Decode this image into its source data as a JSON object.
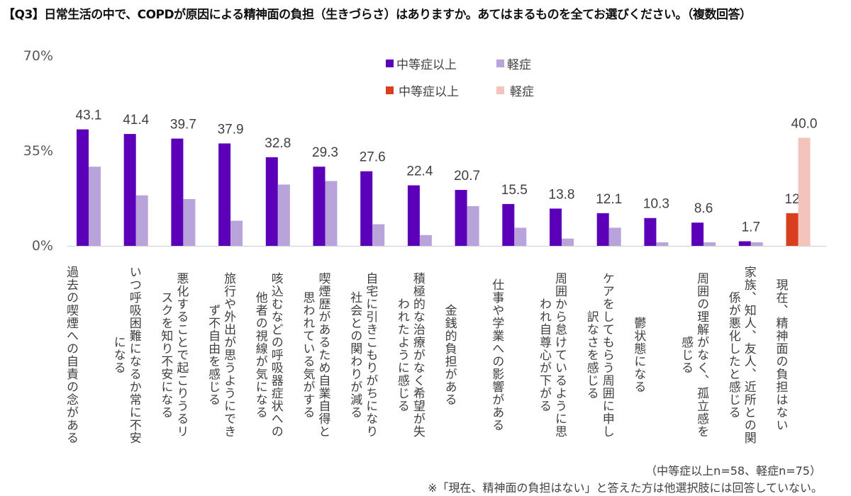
{
  "title": "【Q3】日常生活の中で、COPDが原因による精神面の負担（生きづらさ）はありますか。あてはまるものを全てお選びください。（複数回答）",
  "chart_data": {
    "type": "bar",
    "title": "【Q3】日常生活の中で、COPDが原因による精神面の負担（生きづらさ）はありますか。あてはまるものを全てお選びください。（複数回答）",
    "ylim": [
      0,
      70
    ],
    "yticks": [
      "0%",
      "35%",
      "70%"
    ],
    "grid": false,
    "legend_placement": "top-center",
    "categories": [
      "過去の喫煙への自責の念がある",
      "いつ呼吸困難になるか常に不安\nになる",
      "悪化することで起こりうるリ\nスクを知り不安になる",
      "旅行や外出が思うようにでき\nず不自由を感じる",
      "咳込むなどの呼吸器症状への\n他者の視線が気になる",
      "喫煙歴があるため自業自得と\n思われている気がする",
      "自宅に引きこもりがちになり\n社会との関わりが減る",
      "積極的な治療がなく希望が失\nわれたように感じる",
      "金銭的負担がある",
      "仕事や学業への影響がある",
      "周囲から怠けているように思\nわれ自尊心が下がる",
      "ケアをしてもらう周囲に申し\n訳なさを感じる",
      "鬱状態になる",
      "周囲の理解がなく、孤立感を\n感じる",
      "家族、知人、友人、近所との関\n係が悪化したと感じる",
      "現在、精神面の負担はない"
    ],
    "series": [
      {
        "name": "中等症以上",
        "color": "#5B00B8",
        "values": [
          43.1,
          41.4,
          39.7,
          37.9,
          32.8,
          29.3,
          27.6,
          22.4,
          20.7,
          15.5,
          13.8,
          12.1,
          10.3,
          8.6,
          1.7,
          null
        ],
        "labels_shown": true
      },
      {
        "name": "軽症",
        "color": "#B9A3DB",
        "values": [
          29.3,
          18.7,
          17.3,
          9.3,
          22.7,
          24.0,
          8.0,
          4.0,
          14.7,
          6.7,
          2.7,
          6.7,
          1.3,
          1.3,
          1.3,
          null
        ],
        "labels_shown": false
      },
      {
        "name": "中等症以上",
        "color": "#D93F1E",
        "values": [
          null,
          null,
          null,
          null,
          null,
          null,
          null,
          null,
          null,
          null,
          null,
          null,
          null,
          null,
          null,
          12.1
        ],
        "labels_shown": true
      },
      {
        "name": "軽症",
        "color": "#F4C3BC",
        "values": [
          null,
          null,
          null,
          null,
          null,
          null,
          null,
          null,
          null,
          null,
          null,
          null,
          null,
          null,
          null,
          40.0
        ],
        "labels_shown": true
      }
    ],
    "data_labels": [
      "43.1",
      "41.4",
      "39.7",
      "37.9",
      "32.8",
      "29.3",
      "27.6",
      "22.4",
      "20.7",
      "15.5",
      "13.8",
      "12.1",
      "10.3",
      "8.6",
      "1.7",
      "12.1",
      "40.0"
    ]
  },
  "legend": [
    {
      "label": "中等症以上",
      "color": "#5B00B8"
    },
    {
      "label": "軽症",
      "color": "#B9A3DB"
    },
    {
      "label": "中等症以上",
      "color": "#D93F1E"
    },
    {
      "label": "軽症",
      "color": "#F4C3BC"
    }
  ],
  "notes": {
    "sample": "（中等症以上n=58、軽症n=75）",
    "footnote": "※「現在、精神面の負担はない」と答えた方は他選択肢には回答していない。"
  }
}
